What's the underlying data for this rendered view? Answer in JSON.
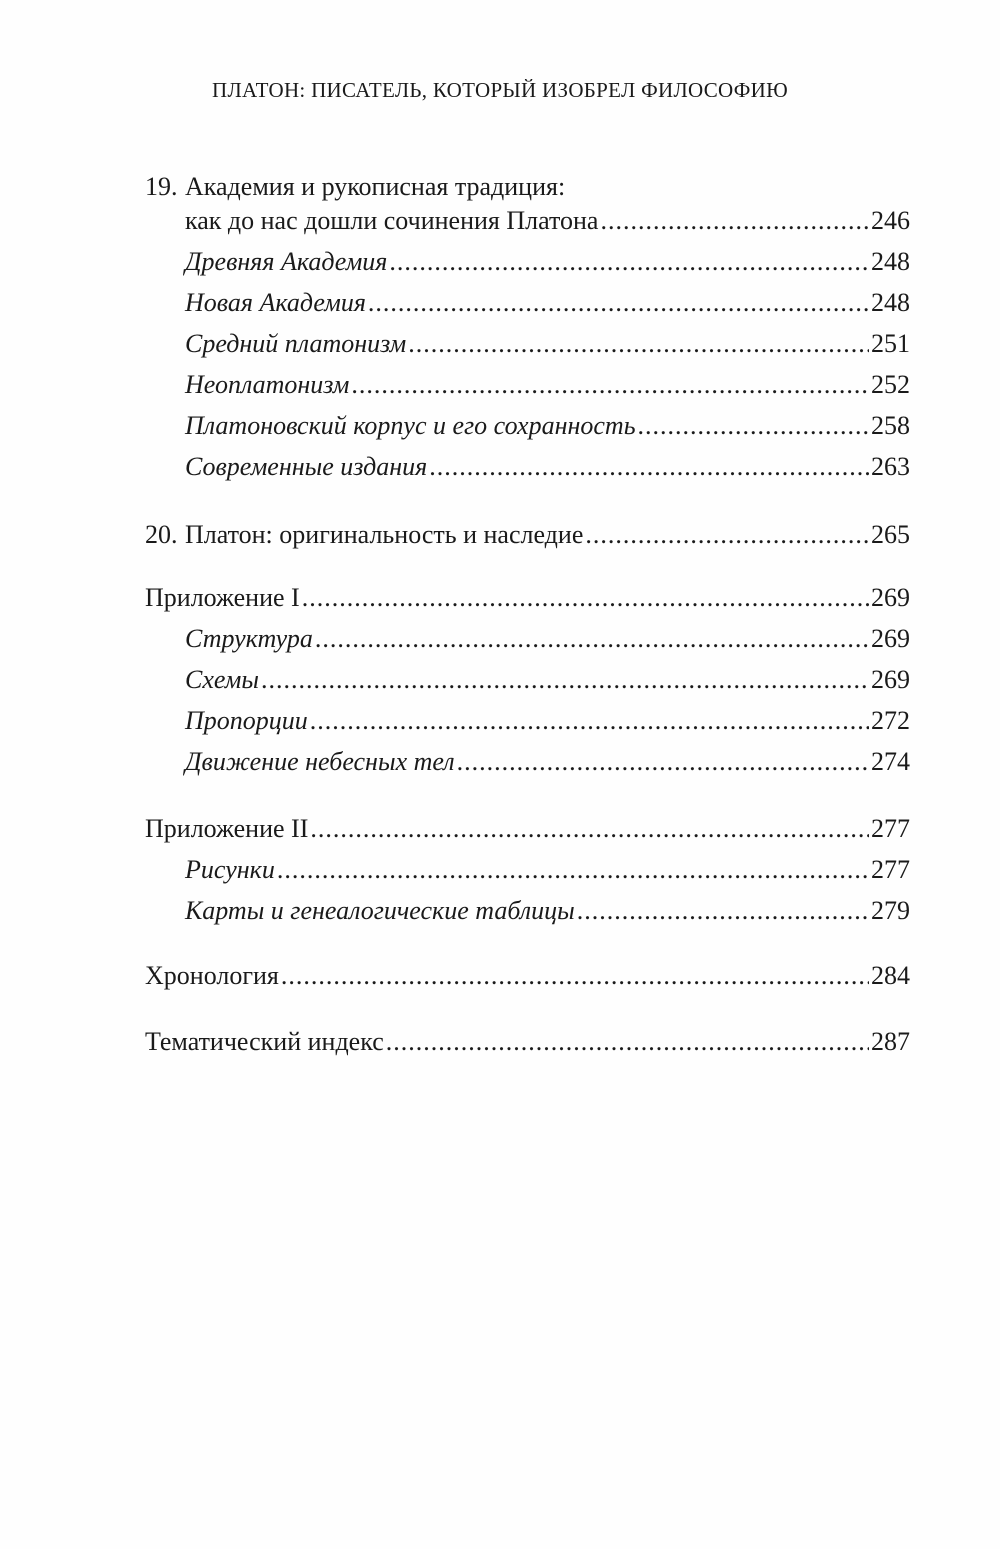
{
  "header": "ПЛАТОН: ПИСАТЕЛЬ, КОТОРЫЙ ИЗОБРЕЛ ФИЛОСОФИЮ",
  "chapter19": {
    "number": "19.",
    "title_line1": "Академия и рукописная традиция:",
    "title_line2": "как до нас дошли сочинения Платона",
    "page": "246",
    "sections": [
      {
        "title": "Древняя Академия",
        "page": "248"
      },
      {
        "title": "Новая Академия",
        "page": "248"
      },
      {
        "title": "Средний платонизм",
        "page": "251"
      },
      {
        "title": "Неоплатонизм",
        "page": "252"
      },
      {
        "title": "Платоновский корпус и его сохранность",
        "page": "258"
      },
      {
        "title": "Современные издания",
        "page": "263"
      }
    ]
  },
  "chapter20": {
    "number": "20.",
    "title": "Платон: оригинальность и наследие",
    "page": "265"
  },
  "appendix1": {
    "title": "Приложение I",
    "page": "269",
    "sections": [
      {
        "title": "Структура",
        "page": "269"
      },
      {
        "title": "Схемы",
        "page": "269"
      },
      {
        "title": "Пропорции",
        "page": "272"
      },
      {
        "title": "Движение небесных тел",
        "page": "274"
      }
    ]
  },
  "appendix2": {
    "title": "Приложение II",
    "page": "277",
    "sections": [
      {
        "title": "Рисунки",
        "page": "277"
      },
      {
        "title": "Карты и генеалогические таблицы",
        "page": "279"
      }
    ]
  },
  "chronology": {
    "title": "Хронология",
    "page": "284"
  },
  "index": {
    "title": "Тематический индекс",
    "page": "287"
  }
}
